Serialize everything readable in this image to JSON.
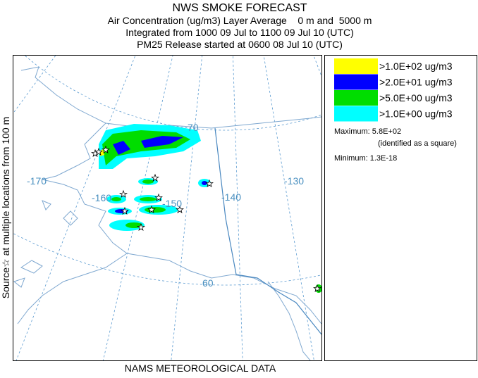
{
  "header": {
    "title": "NWS SMOKE FORECAST",
    "lines": [
      "Air Concentration (ug/m3) Layer Average    0 m and  5000 m",
      "Integrated from 1000 09 Jul to 1100 09 Jul 10 (UTC)",
      "PM25 Release started at 0600 08 Jul 10 (UTC)"
    ]
  },
  "side_label": "Source☆ at multiple locations from 100 m",
  "footer": "NAMS METEOROLOGICAL DATA",
  "legend": {
    "entries": [
      {
        "label": ">1.0E+02 ug/m3",
        "color": "#ffff00"
      },
      {
        "label": ">2.0E+01 ug/m3",
        "color": "#0000ff"
      },
      {
        "label": ">5.0E+00 ug/m3",
        "color": "#00dd00"
      },
      {
        "label": ">1.0E+00 ug/m3",
        "color": "#00ffff"
      }
    ],
    "maximum": "Maximum: 5.8E+02",
    "maximum_note": "(identified as a square)",
    "minimum": "Minimum: 1.3E-18"
  },
  "map": {
    "labels": [
      "-170",
      "-160",
      "-150",
      "-140",
      "-130",
      "70",
      "60"
    ]
  }
}
